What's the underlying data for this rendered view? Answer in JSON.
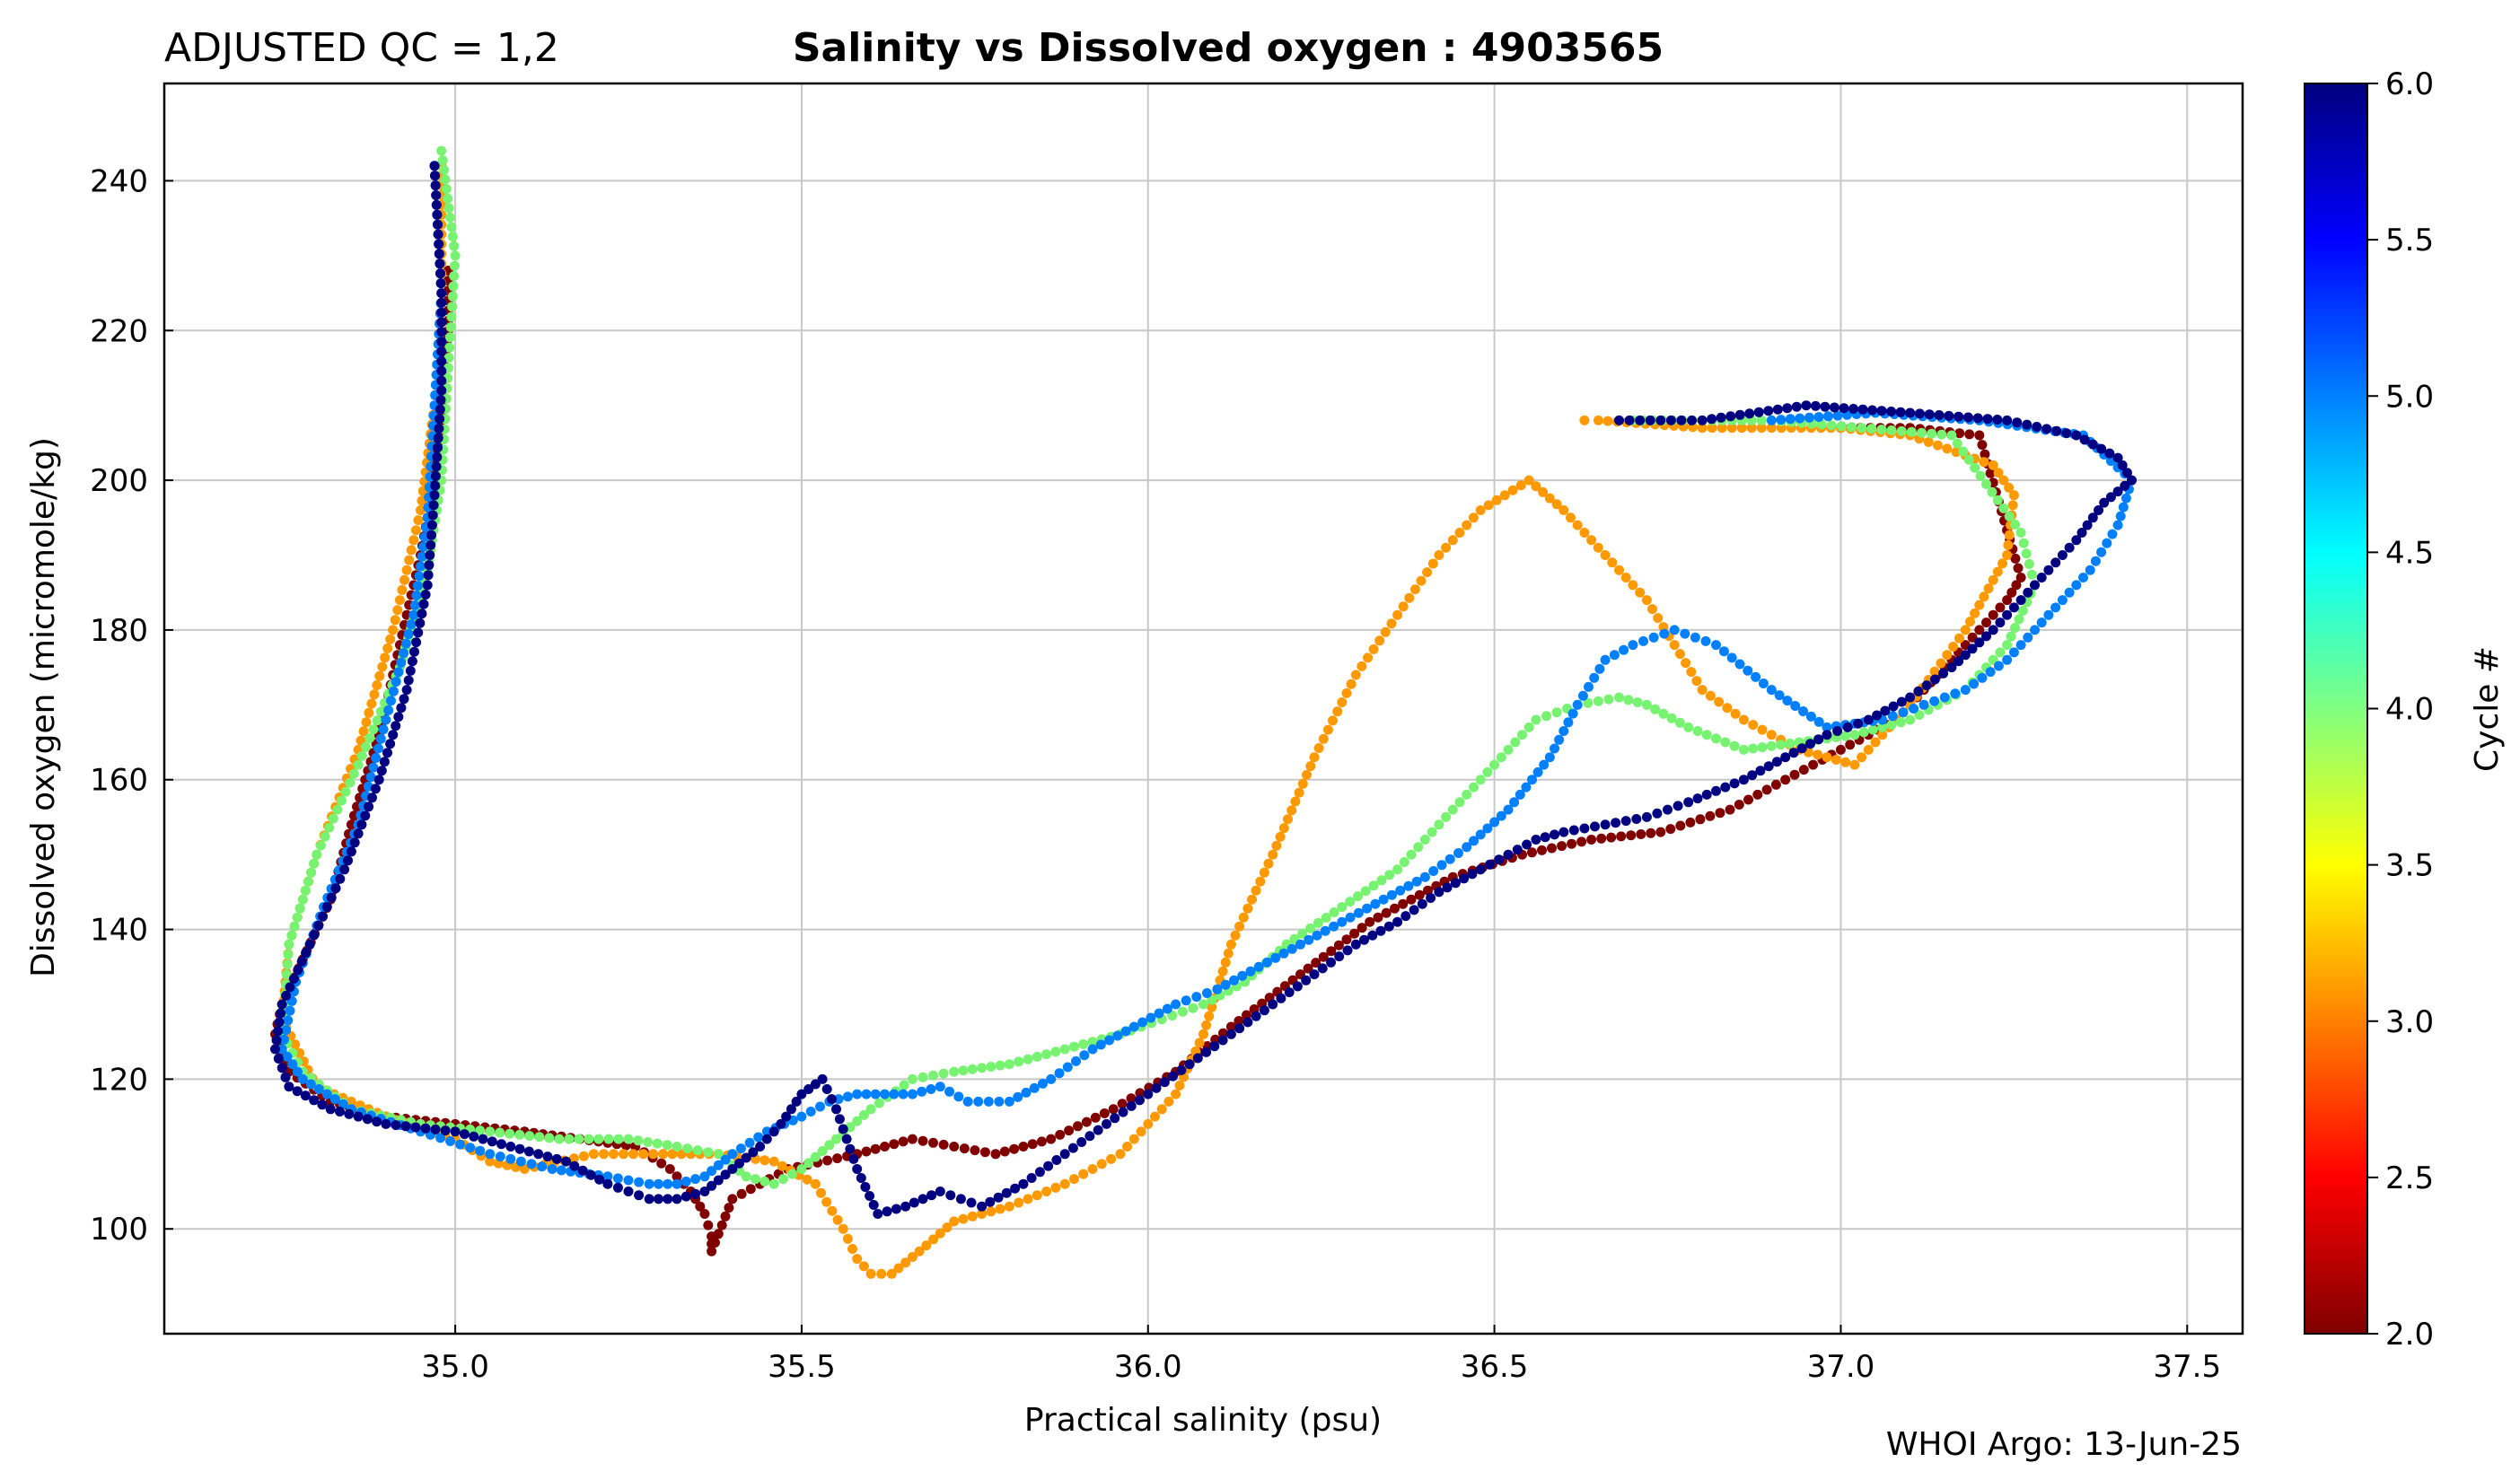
{
  "header": {
    "qc_label": "ADJUSTED QC = 1,2",
    "title": "Salinity vs Dissolved oxygen : 4903565"
  },
  "footer": {
    "credit": "WHOI Argo: 13-Jun-25"
  },
  "chart_data": {
    "type": "scatter",
    "title": "Salinity vs Dissolved oxygen : 4903565",
    "xlabel": "Practical salinity  (psu)",
    "ylabel": "Dissolved oxygen  (micromole/kg)",
    "xlim": [
      34.58,
      37.58
    ],
    "ylim": [
      86,
      253
    ],
    "xticks": [
      35.0,
      35.5,
      36.0,
      36.5,
      37.0,
      37.5
    ],
    "xtick_labels": [
      "35.0",
      "35.5",
      "36.0",
      "36.5",
      "37.0",
      "37.5"
    ],
    "yticks": [
      100,
      120,
      140,
      160,
      180,
      200,
      220,
      240
    ],
    "ytick_labels": [
      "100",
      "120",
      "140",
      "160",
      "180",
      "200",
      "220",
      "240"
    ],
    "grid": true,
    "colorbar": {
      "label": "Cycle #",
      "colormap": "jet",
      "range": [
        2.0,
        6.0
      ],
      "ticks": [
        2.0,
        2.5,
        3.0,
        3.5,
        4.0,
        4.5,
        5.0,
        5.5,
        6.0
      ],
      "tick_labels": [
        "2.0",
        "2.5",
        "3.0",
        "3.5",
        "4.0",
        "4.5",
        "5.0",
        "5.5",
        "6.0"
      ],
      "colors": [
        "#7f0000",
        "#ff0000",
        "#ff8000",
        "#ffff00",
        "#80ff80",
        "#00ffff",
        "#0080ff",
        "#0000ff",
        "#00007f"
      ]
    },
    "series": [
      {
        "cycle": 2,
        "color": "#800000",
        "x": [
          34.99,
          34.99,
          34.98,
          34.97,
          34.95,
          34.92,
          34.89,
          34.85,
          34.82,
          34.78,
          34.75,
          34.74,
          34.76,
          34.82,
          34.9,
          35.0,
          35.1,
          35.18,
          35.26,
          35.31,
          35.34,
          35.36,
          35.37,
          35.37,
          35.4,
          35.48,
          35.58,
          35.66,
          35.72,
          35.78,
          35.86,
          35.95,
          36.04,
          36.12,
          36.22,
          36.32,
          36.44,
          36.54,
          36.64,
          36.74,
          36.84,
          36.92,
          37.0,
          37.08,
          37.14,
          37.2,
          37.24,
          37.26,
          37.2,
          37.1,
          37.0
        ],
        "y": [
          228,
          220,
          210,
          200,
          190,
          178,
          166,
          154,
          144,
          136,
          130,
          126,
          121,
          117,
          115,
          114,
          113,
          112,
          111,
          108,
          105,
          102,
          99,
          97,
          104,
          108,
          110,
          112,
          111,
          110,
          112,
          116,
          121,
          127,
          134,
          141,
          147,
          150,
          152,
          153,
          156,
          160,
          164,
          168,
          174,
          180,
          184,
          187,
          206,
          207,
          207
        ]
      },
      {
        "cycle": 3,
        "color": "#ff9900",
        "x": [
          34.98,
          34.98,
          34.97,
          34.95,
          34.91,
          34.86,
          34.8,
          34.76,
          34.75,
          34.8,
          34.9,
          35.0,
          35.05,
          35.1,
          35.2,
          35.3,
          35.38,
          35.46,
          35.52,
          35.56,
          35.58,
          35.6,
          35.63,
          35.67,
          35.72,
          35.8,
          35.88,
          35.96,
          36.04,
          36.08,
          36.12,
          36.18,
          36.24,
          36.3,
          36.36,
          36.42,
          36.48,
          36.55,
          36.6,
          36.66,
          36.72,
          36.76,
          36.8,
          36.86,
          36.94,
          37.02,
          37.1,
          37.18,
          37.24,
          37.25,
          37.22,
          37.1,
          37.0,
          36.9,
          36.8,
          36.65,
          36.63
        ],
        "y": [
          242,
          225,
          210,
          196,
          180,
          164,
          150,
          138,
          128,
          119,
          115,
          112,
          109,
          108,
          110,
          110,
          110,
          109,
          106,
          100,
          96,
          94,
          94,
          97,
          101,
          103,
          106,
          110,
          118,
          126,
          138,
          150,
          163,
          174,
          182,
          190,
          196,
          200,
          196,
          190,
          184,
          178,
          172,
          168,
          164,
          162,
          170,
          180,
          190,
          198,
          202,
          206,
          207,
          207,
          207,
          208,
          208
        ]
      },
      {
        "cycle": 4,
        "color": "#77f271",
        "x": [
          34.98,
          35.0,
          34.99,
          34.98,
          34.96,
          34.92,
          34.86,
          34.8,
          34.76,
          34.75,
          34.78,
          34.85,
          34.95,
          35.05,
          35.15,
          35.25,
          35.32,
          35.38,
          35.42,
          35.46,
          35.5,
          35.55,
          35.6,
          35.66,
          35.72,
          35.8,
          35.88,
          35.96,
          36.02,
          36.08,
          36.14,
          36.2,
          36.28,
          36.36,
          36.44,
          36.5,
          36.56,
          36.62,
          36.68,
          36.72,
          36.78,
          36.86,
          36.94,
          37.02,
          37.1,
          37.18,
          37.24,
          37.28,
          37.26,
          37.16,
          36.9,
          36.7
        ],
        "y": [
          244,
          230,
          215,
          200,
          188,
          175,
          162,
          150,
          138,
          126,
          121,
          116,
          114,
          113,
          112,
          112,
          111,
          110,
          107,
          106,
          108,
          112,
          116,
          120,
          121,
          122,
          124,
          126,
          128,
          130,
          133,
          138,
          143,
          148,
          156,
          162,
          168,
          170,
          171,
          170,
          167,
          164,
          165,
          166,
          168,
          172,
          178,
          186,
          193,
          206,
          208,
          208
        ]
      },
      {
        "cycle": 5,
        "color": "#0080ff",
        "x": [
          34.97,
          34.98,
          34.97,
          34.96,
          34.94,
          34.9,
          34.86,
          34.81,
          34.77,
          34.75,
          34.78,
          34.85,
          34.95,
          35.05,
          35.14,
          35.22,
          35.28,
          35.32,
          35.36,
          35.4,
          35.45,
          35.5,
          35.54,
          35.58,
          35.62,
          35.66,
          35.7,
          35.74,
          35.8,
          35.86,
          35.92,
          35.98,
          36.04,
          36.1,
          36.16,
          36.22,
          36.28,
          36.34,
          36.4,
          36.46,
          36.52,
          36.58,
          36.62,
          36.66,
          36.7,
          36.76,
          36.82,
          36.9,
          36.98,
          37.06,
          37.12,
          37.18,
          37.24,
          37.3,
          37.36,
          37.4,
          37.42,
          37.35,
          37.2,
          37.05,
          36.9
        ],
        "y": [
          242,
          225,
          210,
          195,
          182,
          168,
          154,
          143,
          133,
          124,
          120,
          116,
          113,
          110,
          108,
          107,
          106,
          106,
          107,
          110,
          113,
          115,
          117,
          118,
          118,
          118,
          119,
          117,
          117,
          120,
          124,
          127,
          130,
          132,
          135,
          138,
          141,
          144,
          147,
          151,
          156,
          163,
          170,
          176,
          178,
          180,
          178,
          172,
          167,
          168,
          170,
          172,
          176,
          182,
          188,
          194,
          200,
          206,
          208,
          209,
          208
        ]
      },
      {
        "cycle": 6,
        "color": "#000080",
        "x": [
          34.97,
          34.98,
          34.98,
          34.97,
          34.96,
          34.93,
          34.89,
          34.84,
          34.79,
          34.75,
          34.74,
          34.76,
          34.82,
          34.9,
          35.0,
          35.08,
          35.16,
          35.22,
          35.28,
          35.32,
          35.36,
          35.4,
          35.44,
          35.47,
          35.5,
          35.53,
          35.55,
          35.58,
          35.61,
          35.65,
          35.7,
          35.76,
          35.82,
          35.88,
          35.94,
          36.0,
          36.06,
          36.12,
          36.18,
          36.24,
          36.3,
          36.36,
          36.42,
          36.48,
          36.52,
          36.56,
          36.6,
          36.66,
          36.72,
          36.78,
          36.86,
          36.92,
          36.98,
          37.04,
          37.1,
          37.16,
          37.22,
          37.28,
          37.34,
          37.38,
          37.42,
          37.4,
          37.34,
          37.24,
          37.1,
          36.95,
          36.8,
          36.68
        ],
        "y": [
          242,
          225,
          212,
          198,
          186,
          172,
          160,
          148,
          138,
          130,
          124,
          119,
          116,
          114,
          113,
          111,
          109,
          106,
          104,
          104,
          105,
          108,
          111,
          114,
          118,
          120,
          116,
          108,
          102,
          103,
          105,
          103,
          106,
          110,
          114,
          118,
          122,
          126,
          130,
          134,
          138,
          141,
          145,
          148,
          150,
          152,
          153,
          154,
          155,
          157,
          160,
          163,
          166,
          168,
          171,
          175,
          180,
          186,
          192,
          197,
          200,
          203,
          206,
          208,
          209,
          210,
          208,
          208
        ]
      }
    ]
  }
}
